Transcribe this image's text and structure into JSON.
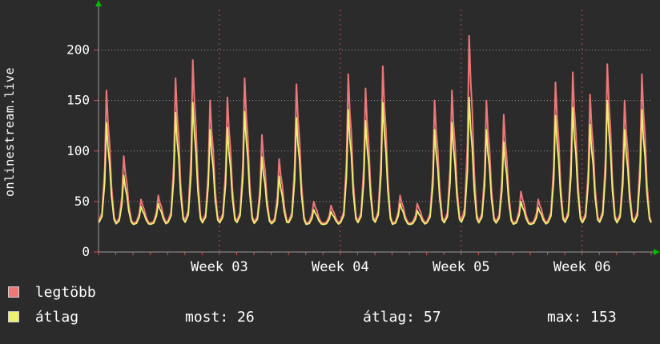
{
  "title": {
    "text": "onlinestream.live"
  },
  "chart_data": {
    "type": "line",
    "watermark": "onlinestream.live",
    "x_axis": {
      "tick_labels": [
        "Week 03",
        "Week 04",
        "Week 05",
        "Week 06"
      ],
      "tick_days": [
        7,
        14,
        21,
        28
      ],
      "total_days": 32
    },
    "y_axis": {
      "ticks": [
        0,
        50,
        100,
        150,
        200
      ],
      "max": 240
    },
    "series": [
      {
        "name": "legtöbb",
        "color": "#ee7777",
        "base": 28,
        "daily_peaks": [
          160,
          95,
          52,
          56,
          172,
          190,
          150,
          153,
          172,
          116,
          92,
          166,
          50,
          46,
          176,
          162,
          184,
          56,
          48,
          150,
          160,
          214,
          150,
          136,
          60,
          52,
          168,
          178,
          156,
          186,
          150,
          176
        ]
      },
      {
        "name": "átlag",
        "color": "#efef70",
        "base": 27,
        "daily_peaks": [
          128,
          76,
          45,
          48,
          138,
          148,
          121,
          123,
          139,
          94,
          75,
          133,
          42,
          40,
          141,
          130,
          148,
          48,
          41,
          121,
          128,
          153,
          121,
          109,
          50,
          44,
          135,
          143,
          126,
          150,
          121,
          141
        ]
      }
    ],
    "intraday_profile": {
      "offsets": [
        0.02,
        0.2,
        0.36,
        0.46,
        0.55,
        0.64,
        0.75,
        0.9
      ],
      "fractions": [
        0.02,
        0.08,
        0.42,
        1.0,
        0.75,
        0.6,
        0.28,
        0.05
      ]
    },
    "grid": {
      "h_color": "#9a9a9a",
      "v_color": "#c04848",
      "axis_color": "#9a9a9a",
      "tick_color": "#e04848",
      "arrow_color": "#00bb00",
      "text_color": "#ffffff"
    },
    "stats": {
      "most": 26,
      "atlag": 57,
      "max": 153
    }
  },
  "legend": {
    "entries": [
      {
        "label": "legtöbb",
        "color": "#ee7777"
      },
      {
        "label": "átlag",
        "color": "#efef70"
      }
    ],
    "stats": [
      {
        "text": "most: 26"
      },
      {
        "text": "átlag: 57"
      },
      {
        "text": "max: 153"
      }
    ]
  }
}
